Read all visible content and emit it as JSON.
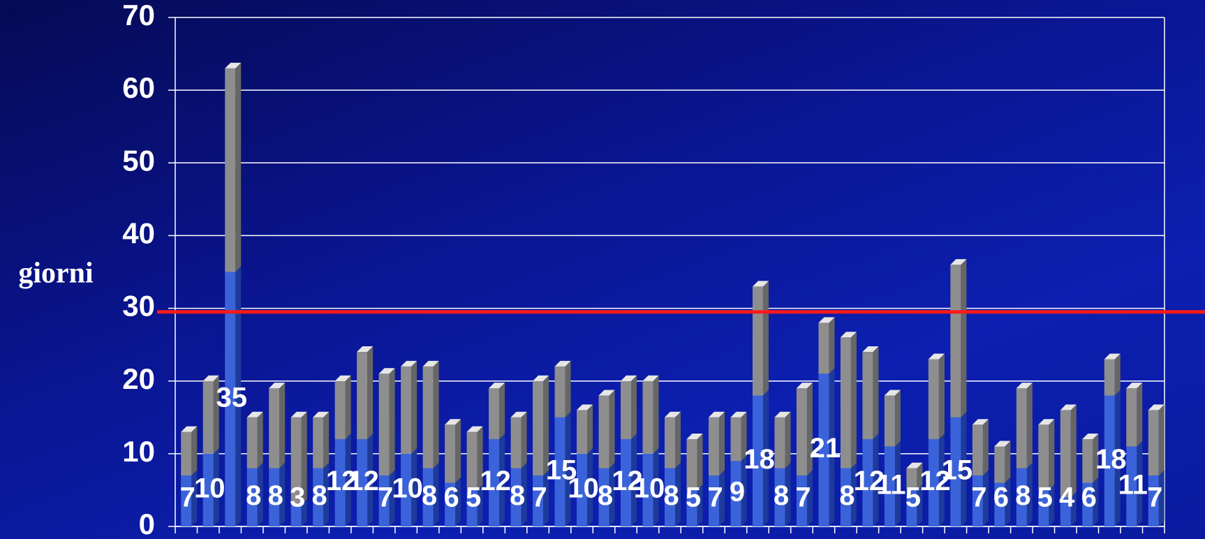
{
  "chart_data": {
    "type": "stacked_bar_3d",
    "y_axis_label": "giorni",
    "categories": [
      null,
      null,
      null,
      null,
      null,
      null,
      null,
      null,
      null,
      null,
      null,
      null,
      null,
      null,
      null,
      null,
      null,
      null,
      null,
      null,
      null,
      null,
      null,
      null,
      null,
      null,
      null,
      null,
      null,
      null,
      null,
      null,
      null,
      null,
      null,
      null,
      null,
      null,
      null,
      null,
      null,
      null,
      null,
      null,
      null
    ],
    "series": [
      {
        "color": "#3b63d9",
        "side_color": "#1e3a9a",
        "labels": true,
        "values": [
          7,
          10,
          35,
          8,
          8,
          3,
          8,
          12,
          12,
          7,
          10,
          8,
          6,
          5,
          12,
          8,
          7,
          15,
          10,
          8,
          12,
          10,
          8,
          5,
          7,
          9,
          18,
          8,
          7,
          21,
          8,
          12,
          11,
          5,
          12,
          15,
          7,
          6,
          8,
          5,
          4,
          6,
          18,
          11,
          7
        ]
      },
      {
        "color": "#8e8e8e",
        "side_color": "#666666",
        "top_color": "#e6e6e6",
        "values": [
          6,
          10,
          28,
          7,
          11,
          12,
          7,
          8,
          12,
          14,
          12,
          14,
          8,
          8,
          7,
          7,
          13,
          7,
          6,
          10,
          8,
          10,
          7,
          7,
          8,
          6,
          15,
          7,
          12,
          7,
          18,
          12,
          7,
          3,
          11,
          21,
          7,
          5,
          11,
          9,
          12,
          6,
          5,
          8,
          9
        ]
      }
    ],
    "reference_line": {
      "value": 29.5,
      "color": "#ff1a1a"
    },
    "ylim": [
      0,
      70
    ],
    "yticks": [
      0,
      10,
      20,
      30,
      40,
      50,
      60,
      70
    ],
    "grid": true
  }
}
